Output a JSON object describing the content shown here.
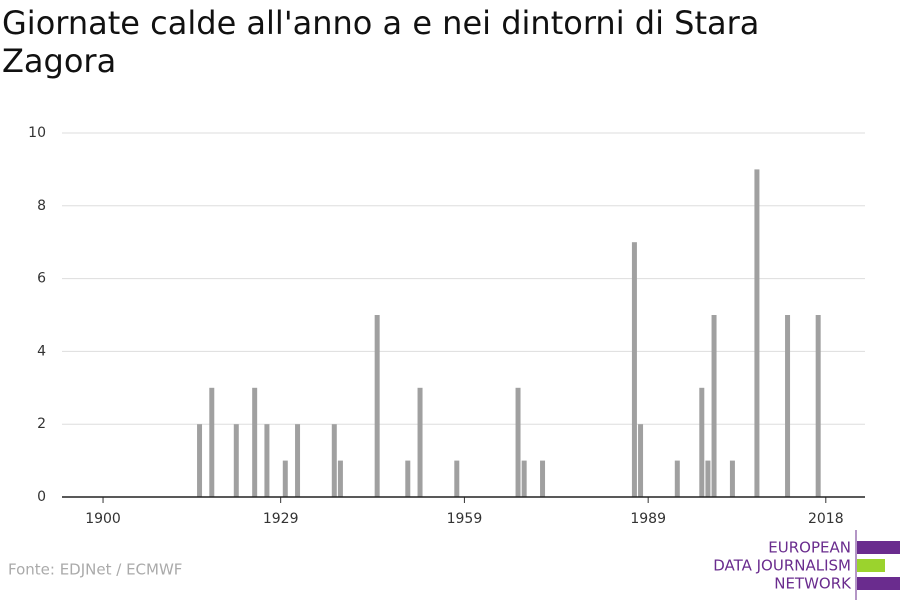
{
  "chart_data": {
    "type": "bar",
    "title": "Giornate calde all'anno a e nei dintorni di Stara Zagora",
    "x": [
      1916,
      1918,
      1922,
      1925,
      1927,
      1930,
      1932,
      1938,
      1939,
      1945,
      1950,
      1952,
      1958,
      1968,
      1969,
      1972,
      1987,
      1988,
      1994,
      1998,
      1999,
      2000,
      2003,
      2007,
      2012,
      2017
    ],
    "values": [
      2,
      3,
      2,
      3,
      2,
      1,
      2,
      2,
      1,
      5,
      1,
      3,
      1,
      3,
      1,
      1,
      7,
      2,
      1,
      3,
      1,
      5,
      1,
      9,
      5,
      5
    ],
    "color": "#a0a0a0",
    "xlim": [
      1893.3,
      2024.4
    ],
    "xticks": [
      1900,
      1929,
      1959,
      1989,
      2018
    ],
    "ylim": [
      0,
      10
    ],
    "yticks": [
      0,
      2,
      4,
      6,
      8,
      10
    ],
    "grid": true,
    "source": "Fonte: EDJNet / ECMWF",
    "logo": [
      "EUROPEAN",
      "DATA JOURNALISM",
      "NETWORK"
    ]
  }
}
